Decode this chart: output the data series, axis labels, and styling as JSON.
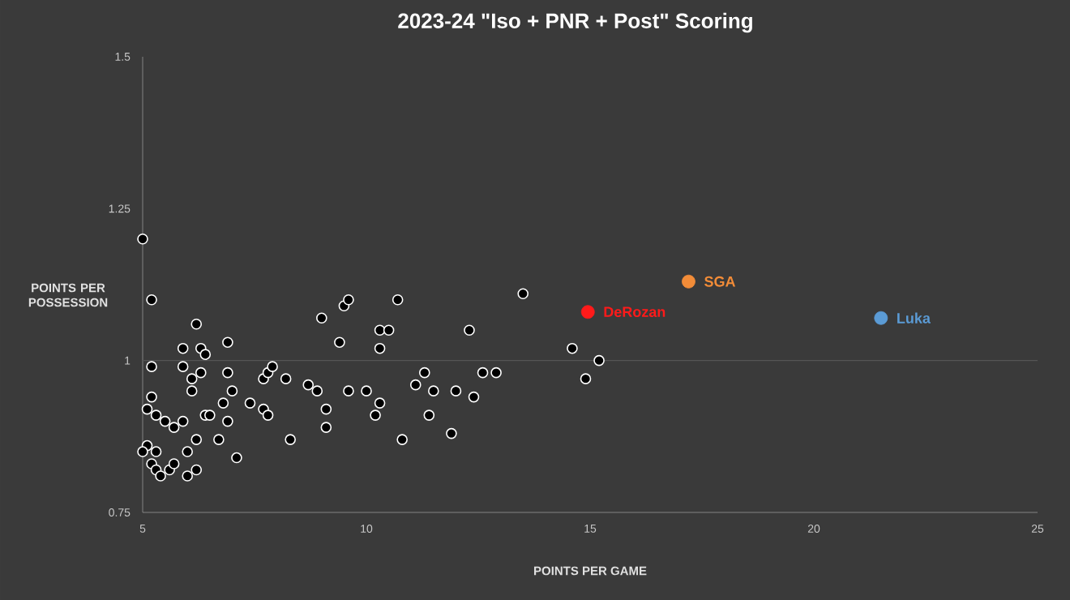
{
  "chart_data": {
    "type": "scatter",
    "title": "2023-24 \"Iso + PNR + Post\" Scoring",
    "xlabel": "POINTS PER GAME",
    "ylabel": "POINTS PER POSSESSION",
    "xlim": [
      5,
      25
    ],
    "xticks": [
      5,
      10,
      15,
      20,
      25
    ],
    "ylim": [
      0.75,
      1.5
    ],
    "yticks": [
      0.75,
      1,
      1.25,
      1.5
    ],
    "marker": "circle",
    "ref_lines": [
      {
        "axis": "y",
        "value": 1,
        "color": "#555555"
      }
    ],
    "series": [
      {
        "color": "#ffffff",
        "x": [
          5.0,
          5.2,
          6.2,
          9.0,
          9.5,
          9.6,
          10.7,
          13.5,
          5.9,
          6.3,
          6.4,
          6.9,
          9.4,
          10.3,
          10.5,
          10.3,
          12.3,
          14.6,
          15.2,
          14.9,
          5.2,
          5.9,
          6.3,
          6.1,
          6.9,
          6.1,
          7.0,
          7.7,
          7.8,
          7.9,
          8.2,
          8.7,
          8.9,
          11.3,
          11.1,
          12.6,
          12.9,
          9.6,
          10.0,
          11.5,
          12.0,
          12.4,
          10.3,
          10.2,
          11.4,
          10.8,
          11.9,
          5.2,
          5.1,
          5.3,
          5.5,
          5.7,
          5.9,
          6.8,
          7.4,
          7.7,
          7.8,
          6.4,
          6.5,
          6.9,
          9.1,
          9.1,
          6.2,
          6.7,
          8.3,
          6.0,
          5.1,
          5.0,
          5.3,
          7.1,
          5.2,
          5.3,
          5.4,
          5.6,
          5.7,
          6.0,
          6.2
        ],
        "values": [
          1.2,
          1.1,
          1.06,
          1.07,
          1.09,
          1.1,
          1.1,
          1.11,
          1.02,
          1.02,
          1.01,
          1.03,
          1.03,
          1.05,
          1.05,
          1.02,
          1.05,
          1.02,
          1.0,
          0.97,
          0.99,
          0.99,
          0.98,
          0.97,
          0.98,
          0.95,
          0.95,
          0.97,
          0.98,
          0.99,
          0.97,
          0.96,
          0.95,
          0.98,
          0.96,
          0.98,
          0.98,
          0.95,
          0.95,
          0.95,
          0.95,
          0.94,
          0.93,
          0.91,
          0.91,
          0.87,
          0.88,
          0.94,
          0.92,
          0.91,
          0.9,
          0.89,
          0.9,
          0.93,
          0.93,
          0.92,
          0.91,
          0.91,
          0.91,
          0.9,
          0.92,
          0.89,
          0.87,
          0.87,
          0.87,
          0.85,
          0.86,
          0.85,
          0.85,
          0.84,
          0.83,
          0.82,
          0.81,
          0.82,
          0.83,
          0.81,
          0.82
        ]
      },
      {
        "name": "DeRozan",
        "color": "#ff1a1a",
        "x": [
          14.95
        ],
        "values": [
          1.08
        ]
      },
      {
        "name": "SGA",
        "color": "#f28c38",
        "x": [
          17.2
        ],
        "values": [
          1.13
        ]
      },
      {
        "name": "Luka",
        "color": "#5b9bd5",
        "x": [
          21.5
        ],
        "values": [
          1.07
        ]
      }
    ]
  }
}
